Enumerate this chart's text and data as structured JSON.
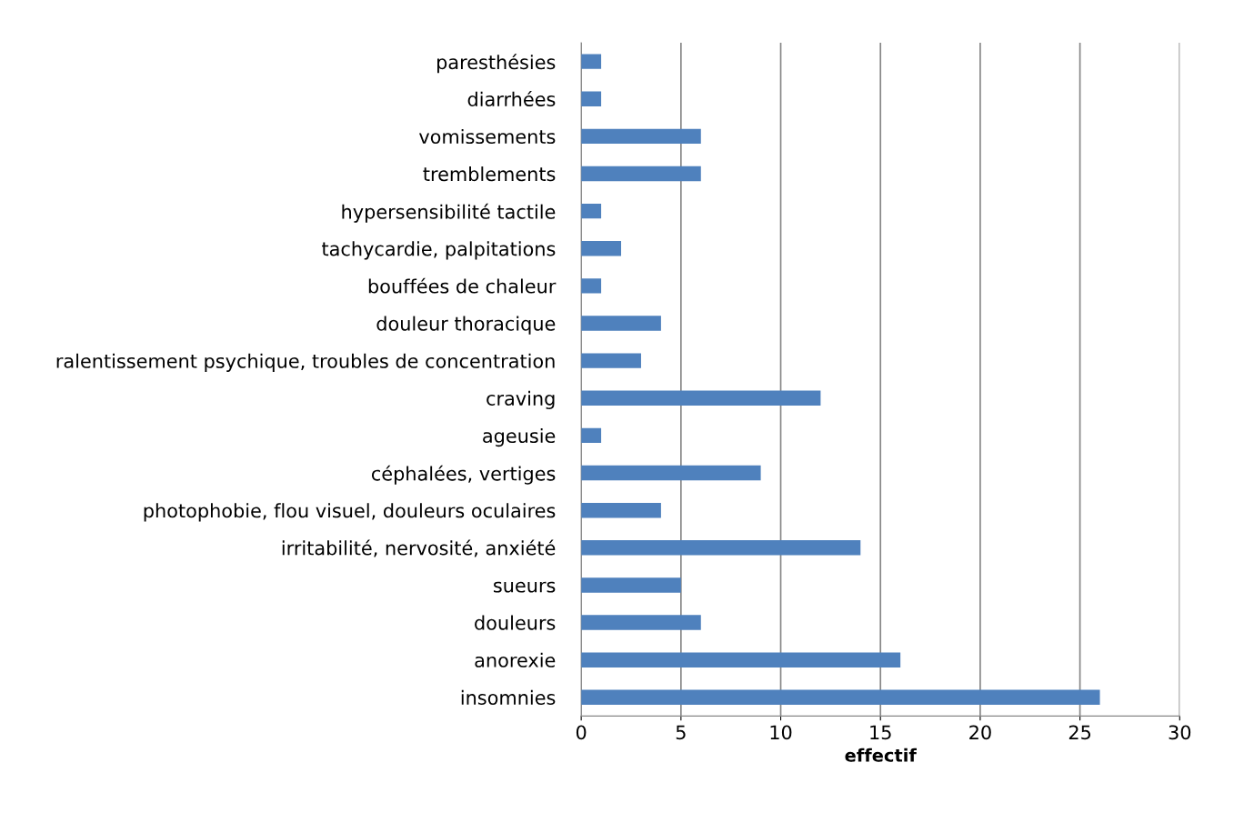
{
  "chart_data": {
    "type": "bar",
    "orientation": "horizontal",
    "xlabel": "effectif",
    "categories": [
      "paresthésies",
      "diarrhées",
      "vomissements",
      "tremblements",
      "hypersensibilité tactile",
      "tachycardie, palpitations",
      "bouffées de chaleur",
      "douleur thoracique",
      "ralentissement psychique, troubles de concentration",
      "craving",
      "ageusie",
      "céphalées, vertiges",
      "photophobie, flou visuel, douleurs oculaires",
      "irritabilité, nervosité, anxiété",
      "sueurs",
      "douleurs",
      "anorexie",
      "insomnies"
    ],
    "values": [
      1,
      1,
      6,
      6,
      1,
      2,
      1,
      4,
      3,
      12,
      1,
      9,
      4,
      14,
      5,
      6,
      16,
      26
    ],
    "color": "#4f81bd",
    "xlim": [
      0,
      30
    ],
    "xticks": [
      0,
      5,
      10,
      15,
      20,
      25,
      30
    ],
    "grid": "x",
    "legend": false
  }
}
